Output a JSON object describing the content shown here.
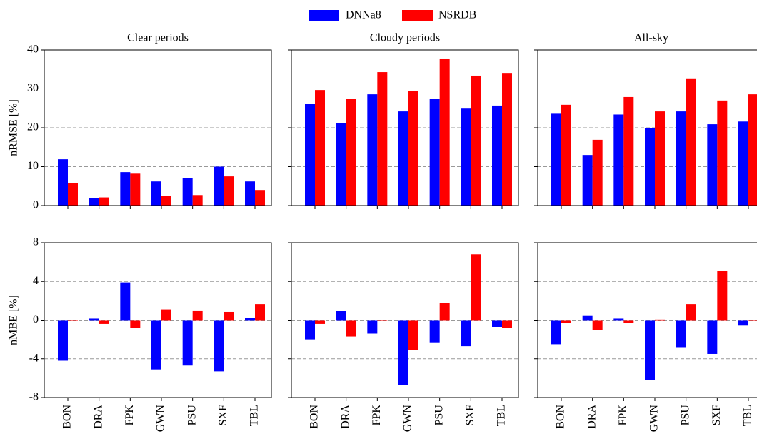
{
  "chart_data": [
    {
      "type": "bar",
      "title": "Clear periods",
      "ylabel": "nRMSE [%]",
      "series": [
        {
          "name": "DNNa8",
          "color": "#0000ff",
          "values": [
            11.9,
            1.9,
            8.6,
            6.2,
            7.0,
            10.0,
            6.2
          ]
        },
        {
          "name": "NSRDB",
          "color": "#ff0000",
          "values": [
            5.8,
            2.1,
            8.2,
            2.5,
            2.7,
            7.5,
            4.0
          ]
        }
      ],
      "ylim": [
        0,
        40
      ],
      "yticks": [
        0,
        10,
        20,
        30,
        40
      ],
      "grid": true
    },
    {
      "type": "bar",
      "title": "Cloudy periods",
      "series": [
        {
          "color": "#0000ff",
          "values": [
            26.2,
            21.2,
            28.6,
            24.2,
            27.5,
            25.1,
            25.7
          ]
        },
        {
          "color": "#ff0000",
          "values": [
            29.7,
            27.5,
            34.3,
            29.5,
            37.8,
            33.4,
            34.1
          ]
        }
      ],
      "ylim": [
        0,
        40
      ],
      "yticks": [
        0,
        10,
        20,
        30,
        40
      ],
      "grid": true
    },
    {
      "type": "bar",
      "title": "All-sky",
      "series": [
        {
          "color": "#0000ff",
          "values": [
            23.6,
            13.0,
            23.4,
            19.9,
            24.2,
            20.9,
            21.6
          ]
        },
        {
          "color": "#ff0000",
          "values": [
            25.9,
            16.9,
            27.9,
            24.2,
            32.7,
            27.0,
            28.6
          ]
        }
      ],
      "ylim": [
        0,
        40
      ],
      "yticks": [
        0,
        10,
        20,
        30,
        40
      ],
      "grid": true
    },
    {
      "type": "bar",
      "ylabel": "nMBE [%]",
      "categories": [
        "BON",
        "DRA",
        "FPK",
        "GWN",
        "PSU",
        "SXF",
        "TBL"
      ],
      "series": [
        {
          "color": "#0000ff",
          "values": [
            -4.2,
            0.15,
            3.9,
            -5.1,
            -4.7,
            -5.3,
            0.2
          ]
        },
        {
          "color": "#ff0000",
          "values": [
            -0.05,
            -0.4,
            -0.8,
            1.1,
            1.0,
            0.85,
            1.65
          ]
        }
      ],
      "ylim": [
        -8,
        8
      ],
      "yticks": [
        -8,
        -4,
        0,
        4,
        8
      ],
      "grid": true
    },
    {
      "type": "bar",
      "categories": [
        "BON",
        "DRA",
        "FPK",
        "GWN",
        "PSU",
        "SXF",
        "TBL"
      ],
      "series": [
        {
          "color": "#0000ff",
          "values": [
            -2.0,
            0.95,
            -1.4,
            -6.7,
            -2.3,
            -2.7,
            -0.7
          ]
        },
        {
          "color": "#ff0000",
          "values": [
            -0.4,
            -1.7,
            -0.1,
            -3.1,
            1.8,
            6.8,
            -0.8
          ]
        }
      ],
      "ylim": [
        -8,
        8
      ],
      "yticks": [
        -8,
        -4,
        0,
        4,
        8
      ],
      "grid": true
    },
    {
      "type": "bar",
      "categories": [
        "BON",
        "DRA",
        "FPK",
        "GWN",
        "PSU",
        "SXF",
        "TBL"
      ],
      "series": [
        {
          "color": "#0000ff",
          "values": [
            -2.5,
            0.5,
            0.15,
            -6.2,
            -2.8,
            -3.5,
            -0.5
          ]
        },
        {
          "color": "#ff0000",
          "values": [
            -0.3,
            -1.0,
            -0.3,
            0.05,
            1.65,
            5.1,
            -0.1
          ]
        }
      ],
      "ylim": [
        -8,
        8
      ],
      "yticks": [
        -8,
        -4,
        0,
        4,
        8
      ],
      "grid": true
    }
  ]
}
